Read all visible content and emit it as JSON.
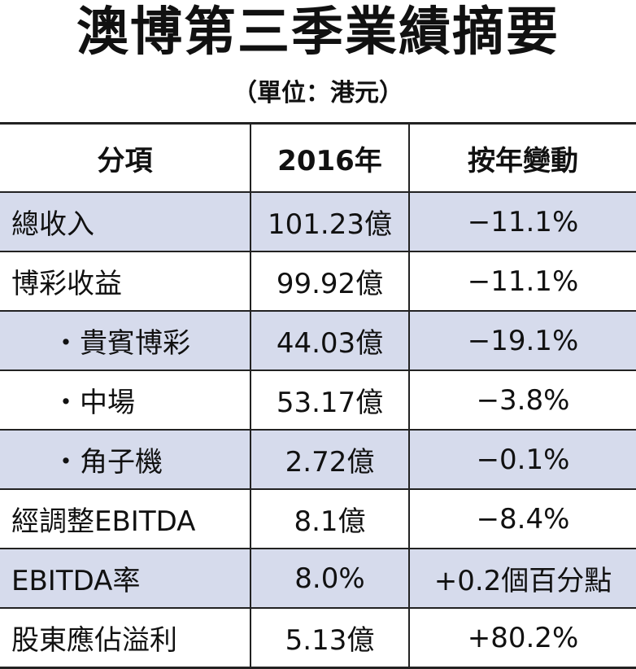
{
  "title": "澳博第三季業績摘要",
  "unit": "（單位：港元）",
  "table": {
    "headers": [
      "分項",
      "2016年",
      "按年變動"
    ],
    "rows": [
      {
        "label": "總收入",
        "value": "101.23億",
        "change": "−11.1%"
      },
      {
        "label": "博彩收益",
        "value": "99.92億",
        "change": "−11.1%"
      },
      {
        "label": "・貴賓博彩",
        "value": "44.03億",
        "change": "−19.1%"
      },
      {
        "label": "・中場",
        "value": "53.17億",
        "change": "−3.8%"
      },
      {
        "label": "・角子機",
        "value": "2.72億",
        "change": "−0.1%"
      },
      {
        "label": "經調整EBITDA",
        "value": "8.1億",
        "change": "−8.4%"
      },
      {
        "label": "EBITDA率",
        "value": "8.0%",
        "change": "+0.2個百分點"
      },
      {
        "label": "股東應佔溢利",
        "value": "5.13億",
        "change": "+80.2%"
      }
    ]
  },
  "colors": {
    "stripe": "#d6dbec",
    "border": "#222222"
  }
}
